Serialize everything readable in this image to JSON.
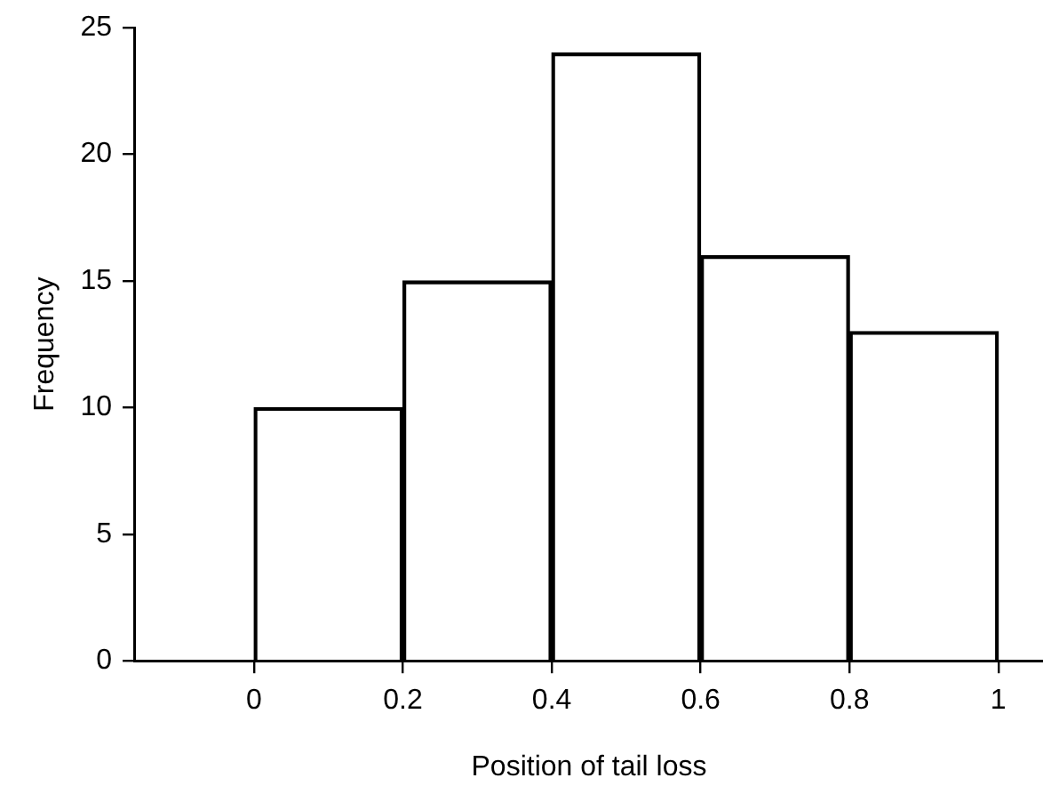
{
  "chart_data": {
    "type": "histogram",
    "xlabel": "Position of tail loss",
    "ylabel": "Frequency",
    "bins": [
      0,
      0.2,
      0.4,
      0.6,
      0.8,
      1
    ],
    "values": [
      10,
      15,
      24,
      16,
      13
    ],
    "color": "#000000",
    "xlim": [
      -0.16,
      1.06
    ],
    "xticks": [
      0,
      0.2,
      0.4,
      0.6,
      0.8,
      1
    ],
    "ylim": [
      0,
      25
    ],
    "yticks": [
      0,
      5,
      10,
      15,
      20,
      25
    ],
    "grid": false,
    "legend": false
  }
}
